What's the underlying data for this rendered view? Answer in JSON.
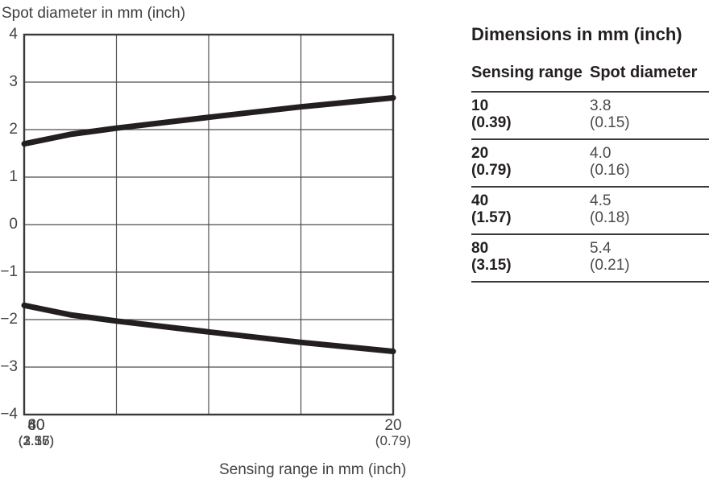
{
  "chart_data": {
    "type": "line",
    "title": "Spot diameter in mm (inch)",
    "xlabel": "Sensing range in mm (inch)",
    "ylabel": "Spot diameter in mm (inch)",
    "xlim": [
      0,
      80
    ],
    "ylim": [
      -4,
      4
    ],
    "grid": true,
    "legend": "none",
    "x_gridlines": [
      20,
      40,
      60
    ],
    "y_gridlines": [
      -3,
      -2,
      -1,
      0,
      1,
      2,
      3
    ],
    "x_ticks": [
      {
        "mm": "20",
        "inch": "(0.79)"
      },
      {
        "mm": "40",
        "inch": "(1.57)"
      },
      {
        "mm": "60",
        "inch": "(2.36)"
      },
      {
        "mm": "80",
        "inch": "(3.15)"
      }
    ],
    "y_ticks": [
      "4",
      "3",
      "2",
      "1",
      "0",
      "−1",
      "−2",
      "−3",
      "−4"
    ],
    "series": [
      {
        "name": "spot-radius-upper",
        "x": [
          0,
          10,
          20,
          40,
          60,
          80
        ],
        "y": [
          1.7,
          1.9,
          2.03,
          2.26,
          2.48,
          2.67
        ]
      },
      {
        "name": "spot-radius-lower",
        "x": [
          0,
          10,
          20,
          40,
          60,
          80
        ],
        "y": [
          -1.7,
          -1.9,
          -2.03,
          -2.26,
          -2.48,
          -2.67
        ]
      }
    ]
  },
  "table": {
    "title": "Dimensions in mm (inch)",
    "columns": [
      "Sensing range",
      "Spot diameter"
    ],
    "rows": [
      {
        "range_mm": "10",
        "range_inch": "(0.39)",
        "spot_mm": "3.8",
        "spot_inch": "(0.15)"
      },
      {
        "range_mm": "20",
        "range_inch": "(0.79)",
        "spot_mm": "4.0",
        "spot_inch": "(0.16)"
      },
      {
        "range_mm": "40",
        "range_inch": "(1.57)",
        "spot_mm": "4.5",
        "spot_inch": "(0.18)"
      },
      {
        "range_mm": "80",
        "range_inch": "(3.15)",
        "spot_mm": "5.4",
        "spot_inch": "(0.21)"
      }
    ]
  },
  "colors": {
    "curve": "#231f20",
    "grid": "#4d4d4d",
    "frame": "#3a3a3a",
    "chart_text": "#444444",
    "table_text_bold": "#231f20",
    "table_text_regular": "#4a4a4a",
    "background": "#ffffff"
  }
}
